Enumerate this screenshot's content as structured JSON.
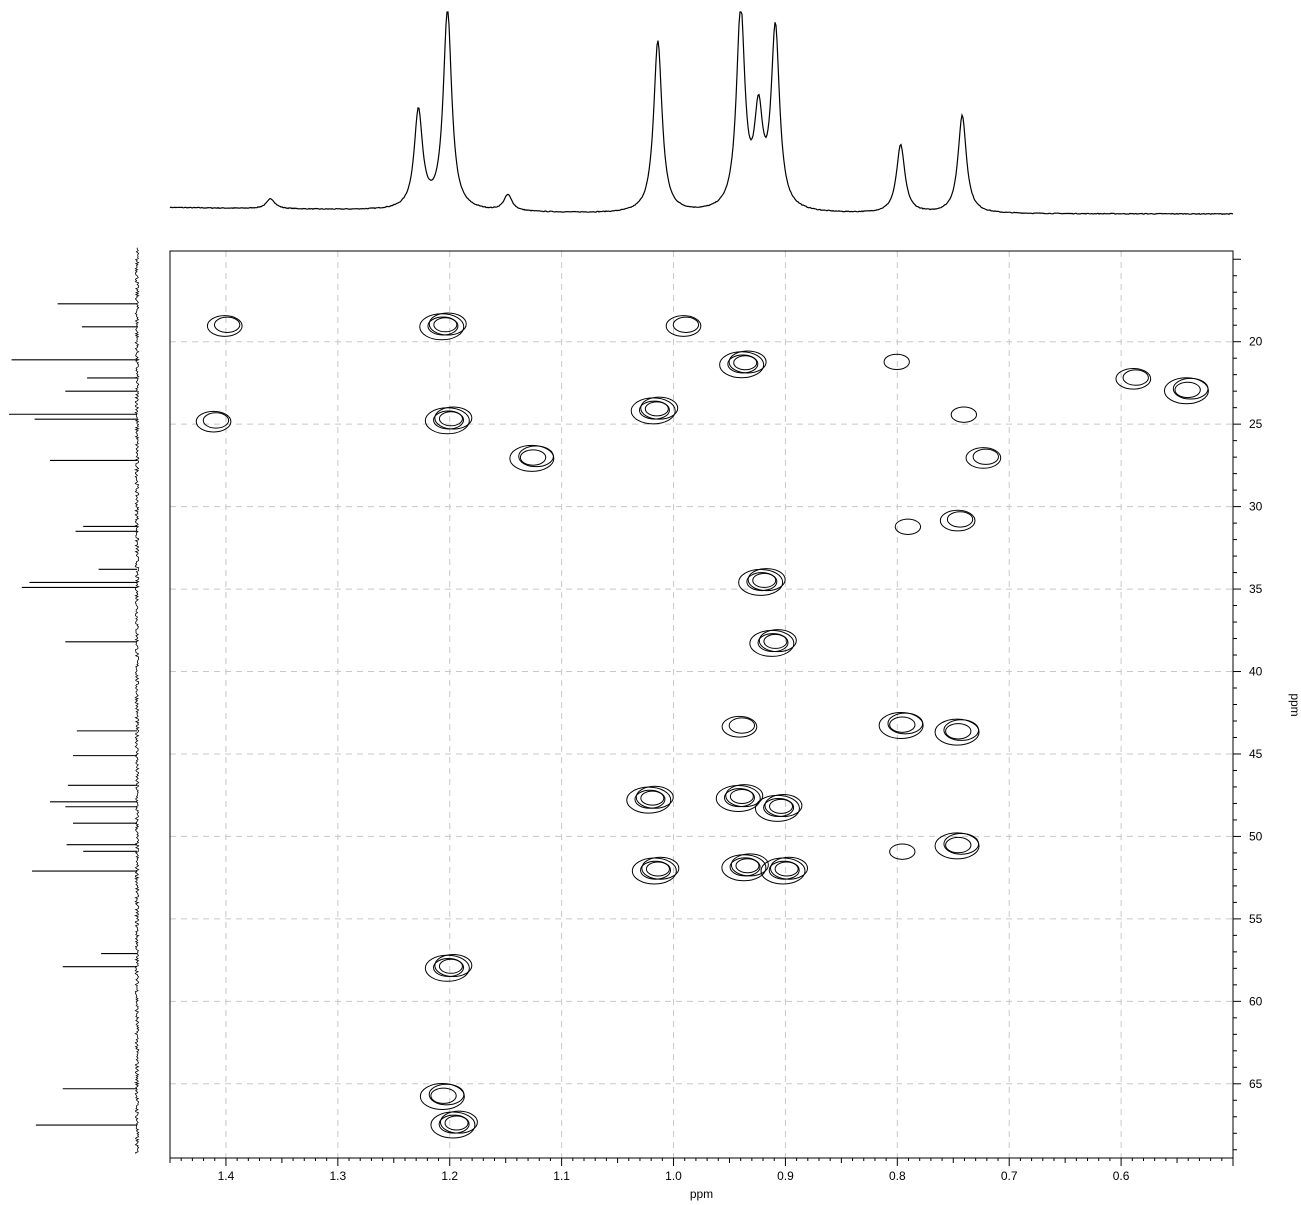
{
  "chart_data": {
    "type": "heatmap",
    "subtype": "2D NMR contour plot (HSQC) with projections",
    "title": "",
    "xlabel": "ppm",
    "ylabel": "ppm",
    "x_axis": {
      "reversed": true,
      "xlim": [
        1.45,
        0.5
      ],
      "ticks": [
        1.4,
        1.3,
        1.2,
        1.1,
        1.0,
        0.9,
        0.8,
        0.7,
        0.6
      ],
      "tick_labels": [
        "1.4",
        "1.3",
        "1.2",
        "1.1",
        "1.0",
        "0.9",
        "0.8",
        "0.7",
        "0.6"
      ]
    },
    "y_axis": {
      "position": "right",
      "ylim": [
        14.5,
        69.5
      ],
      "inverted": true,
      "ticks": [
        20,
        25,
        30,
        35,
        40,
        45,
        50,
        55,
        60,
        65
      ],
      "tick_labels": [
        "20",
        "25",
        "30",
        "35",
        "40",
        "45",
        "50",
        "55",
        "60",
        "65"
      ]
    },
    "grid": true,
    "grid_style": "dashed",
    "top_projection": {
      "axis": "x",
      "peaks": [
        {
          "x": 1.228,
          "h": 0.49
        },
        {
          "x": 1.202,
          "h": 1.0
        },
        {
          "x": 1.148,
          "h": 0.08
        },
        {
          "x": 1.014,
          "h": 0.86
        },
        {
          "x": 0.94,
          "h": 1.0
        },
        {
          "x": 0.924,
          "h": 0.45
        },
        {
          "x": 0.909,
          "h": 0.9
        },
        {
          "x": 0.797,
          "h": 0.34
        },
        {
          "x": 0.742,
          "h": 0.49
        },
        {
          "x": 1.36,
          "h": 0.05
        }
      ]
    },
    "left_projection": {
      "axis": "y",
      "peaks": [
        {
          "y": 17.7,
          "h": 0.62
        },
        {
          "y": 19.1,
          "h": 0.43
        },
        {
          "y": 21.1,
          "h": 0.98
        },
        {
          "y": 22.2,
          "h": 0.39
        },
        {
          "y": 23.0,
          "h": 0.56
        },
        {
          "y": 24.4,
          "h": 1.0
        },
        {
          "y": 24.7,
          "h": 0.8
        },
        {
          "y": 27.2,
          "h": 0.68
        },
        {
          "y": 31.2,
          "h": 0.42
        },
        {
          "y": 31.5,
          "h": 0.48
        },
        {
          "y": 33.8,
          "h": 0.3
        },
        {
          "y": 34.6,
          "h": 0.84
        },
        {
          "y": 34.9,
          "h": 0.9
        },
        {
          "y": 38.2,
          "h": 0.56
        },
        {
          "y": 43.6,
          "h": 0.47
        },
        {
          "y": 45.1,
          "h": 0.5
        },
        {
          "y": 46.9,
          "h": 0.54
        },
        {
          "y": 47.9,
          "h": 0.68
        },
        {
          "y": 48.2,
          "h": 0.56
        },
        {
          "y": 49.2,
          "h": 0.5
        },
        {
          "y": 50.5,
          "h": 0.55
        },
        {
          "y": 50.9,
          "h": 0.42
        },
        {
          "y": 52.1,
          "h": 0.82
        },
        {
          "y": 57.1,
          "h": 0.28
        },
        {
          "y": 57.9,
          "h": 0.58
        },
        {
          "y": 65.3,
          "h": 0.58
        },
        {
          "y": 67.5,
          "h": 0.79
        }
      ]
    },
    "cross_peaks": [
      {
        "x": 1.4,
        "y": 19.0,
        "levels": 2
      },
      {
        "x": 1.205,
        "y": 19.0,
        "levels": 4
      },
      {
        "x": 0.99,
        "y": 19.0,
        "levels": 2
      },
      {
        "x": 1.41,
        "y": 24.8,
        "levels": 2
      },
      {
        "x": 1.2,
        "y": 24.7,
        "levels": 4
      },
      {
        "x": 1.125,
        "y": 27.0,
        "levels": 3
      },
      {
        "x": 1.016,
        "y": 24.1,
        "levels": 4
      },
      {
        "x": 0.937,
        "y": 21.3,
        "levels": 4
      },
      {
        "x": 0.8,
        "y": 21.2,
        "levels": 1
      },
      {
        "x": 0.588,
        "y": 22.2,
        "levels": 2
      },
      {
        "x": 0.54,
        "y": 22.9,
        "levels": 3
      },
      {
        "x": 0.74,
        "y": 24.4,
        "levels": 1
      },
      {
        "x": 0.722,
        "y": 27.0,
        "levels": 2
      },
      {
        "x": 0.79,
        "y": 31.2,
        "levels": 1
      },
      {
        "x": 0.745,
        "y": 30.8,
        "levels": 2
      },
      {
        "x": 0.92,
        "y": 34.5,
        "levels": 4
      },
      {
        "x": 0.91,
        "y": 38.2,
        "levels": 4
      },
      {
        "x": 0.94,
        "y": 43.3,
        "levels": 2
      },
      {
        "x": 0.795,
        "y": 43.2,
        "levels": 3
      },
      {
        "x": 0.745,
        "y": 43.6,
        "levels": 3
      },
      {
        "x": 1.02,
        "y": 47.7,
        "levels": 4
      },
      {
        "x": 0.94,
        "y": 47.6,
        "levels": 4
      },
      {
        "x": 0.905,
        "y": 48.2,
        "levels": 4
      },
      {
        "x": 1.015,
        "y": 52.0,
        "levels": 4
      },
      {
        "x": 0.935,
        "y": 51.8,
        "levels": 4
      },
      {
        "x": 0.9,
        "y": 52.0,
        "levels": 4
      },
      {
        "x": 0.795,
        "y": 50.9,
        "levels": 1
      },
      {
        "x": 0.745,
        "y": 50.5,
        "levels": 3
      },
      {
        "x": 1.2,
        "y": 57.9,
        "levels": 4
      },
      {
        "x": 1.205,
        "y": 65.7,
        "levels": 3
      },
      {
        "x": 1.195,
        "y": 67.4,
        "levels": 4
      }
    ]
  }
}
